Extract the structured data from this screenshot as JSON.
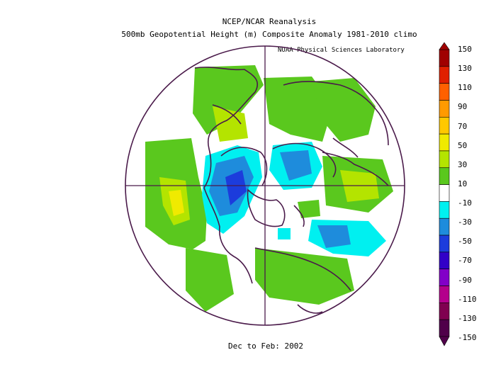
{
  "header": {
    "title": "NCEP/NCAR Reanalysis",
    "subtitle": "500mb Geopotential Height (m) Composite Anomaly 1981-2010 climo",
    "credit": "NOAA Physical Sciences Laboratory"
  },
  "footer": {
    "period": "Dec to Feb: 2002"
  },
  "colorbar": {
    "labels": [
      "150",
      "130",
      "110",
      "90",
      "70",
      "50",
      "30",
      "10",
      "-10",
      "-30",
      "-50",
      "-70",
      "-90",
      "-110",
      "-130",
      "-150"
    ],
    "colors": [
      "#a00000",
      "#e02000",
      "#ff6000",
      "#ff9a00",
      "#ffc800",
      "#f0ea00",
      "#b4e400",
      "#5ac81e",
      "#ffffff",
      "#00f0f0",
      "#1e8cdc",
      "#1c3cdc",
      "#3200c8",
      "#8200c8",
      "#b4008c",
      "#800050",
      "#50004a"
    ],
    "arrow_top_color": "#a00000",
    "arrow_bottom_color": "#50004a"
  },
  "map": {
    "projection": "north-polar-stereographic",
    "outline_color": "#4a1a4a",
    "anomaly_regions": [
      {
        "label": "positive",
        "color": "#5ac81e"
      },
      {
        "label": "negative",
        "color": "#1e8cdc"
      }
    ]
  }
}
